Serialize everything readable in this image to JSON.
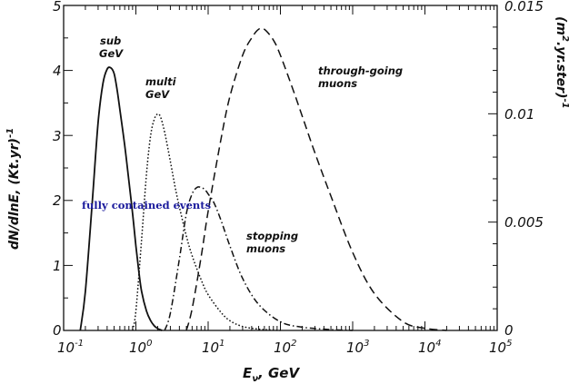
{
  "chart_data": {
    "type": "line",
    "xscale": "log",
    "xlim": [
      0.1,
      100000
    ],
    "ylim": [
      0,
      5
    ],
    "y2lim": [
      0,
      0.015
    ],
    "x_ticks": [
      {
        "base": "10",
        "exp": "-1"
      },
      {
        "base": "10",
        "exp": "0"
      },
      {
        "base": "10",
        "exp": "1"
      },
      {
        "base": "10",
        "exp": "2"
      },
      {
        "base": "10",
        "exp": "3"
      },
      {
        "base": "10",
        "exp": "4"
      },
      {
        "base": "10",
        "exp": "5"
      }
    ],
    "y_ticks": [
      "0",
      "1",
      "2",
      "3",
      "4",
      "5"
    ],
    "y2_ticks": [
      "0",
      "0.005",
      "0.01",
      "0.015"
    ],
    "xlabel": {
      "main": "E",
      "sub": "ν",
      "rest": ",  GeV"
    },
    "ylabel": "dN/dlnE, (Kt.yr)",
    "ylabel_exp": "-1",
    "y2label": {
      "pre": "(m",
      "sup1": "2",
      "mid": ".yr.ster)",
      "sup2": "-1"
    },
    "annotations": {
      "sub_gev": [
        "sub",
        "GeV"
      ],
      "multi_gev": [
        "multi",
        "GeV"
      ],
      "through_going": [
        "through-going",
        "muons"
      ],
      "stopping": [
        "stopping",
        "muons"
      ],
      "fully_contained": "fully contained events"
    },
    "series": [
      {
        "id": "sub_gev",
        "style": "solid",
        "axis": "left",
        "x": [
          0.17,
          0.2,
          0.25,
          0.3,
          0.35,
          0.4,
          0.45,
          0.5,
          0.55,
          0.6,
          0.7,
          0.8,
          0.9,
          1.0,
          1.1,
          1.2,
          1.4,
          1.6,
          1.8,
          2.0,
          2.3
        ],
        "y": [
          0,
          0.6,
          2.0,
          3.2,
          3.8,
          4.02,
          4.04,
          3.95,
          3.7,
          3.4,
          2.85,
          2.3,
          1.8,
          1.3,
          0.9,
          0.6,
          0.3,
          0.15,
          0.07,
          0.03,
          0
        ]
      },
      {
        "id": "multi_gev",
        "style": "dotted",
        "axis": "left",
        "x": [
          0.9,
          1.0,
          1.2,
          1.4,
          1.6,
          1.8,
          2.0,
          2.2,
          2.5,
          3.0,
          3.5,
          4.0,
          5.0,
          6.0,
          8.0,
          10,
          15,
          20,
          30,
          50,
          70,
          100
        ],
        "y": [
          0,
          0.3,
          1.4,
          2.4,
          3.0,
          3.25,
          3.33,
          3.28,
          3.05,
          2.6,
          2.2,
          1.9,
          1.45,
          1.15,
          0.78,
          0.55,
          0.28,
          0.15,
          0.06,
          0.02,
          0.01,
          0
        ]
      },
      {
        "id": "stopping_muons",
        "style": "dashdot",
        "axis": "right",
        "x": [
          2.5,
          3,
          4,
          5,
          6,
          7,
          8,
          9,
          10,
          12,
          15,
          20,
          30,
          50,
          100,
          200,
          500,
          1000
        ],
        "y": [
          0,
          0.0008,
          0.0033,
          0.0054,
          0.0063,
          0.0066,
          0.0066,
          0.0065,
          0.0063,
          0.0059,
          0.0051,
          0.0039,
          0.0024,
          0.0012,
          0.0004,
          0.00015,
          4e-05,
          0
        ]
      },
      {
        "id": "through_going",
        "style": "dashed",
        "axis": "right",
        "x": [
          5,
          6,
          8,
          10,
          15,
          20,
          30,
          40,
          50,
          60,
          80,
          100,
          150,
          200,
          300,
          500,
          1000,
          2000,
          5000,
          10000,
          20000
        ],
        "y": [
          0,
          0.001,
          0.0034,
          0.0055,
          0.0088,
          0.0108,
          0.0127,
          0.0135,
          0.0139,
          0.0139,
          0.0134,
          0.0127,
          0.0111,
          0.0099,
          0.0082,
          0.0062,
          0.0036,
          0.0017,
          0.0004,
          0.0001,
          0
        ]
      }
    ]
  }
}
